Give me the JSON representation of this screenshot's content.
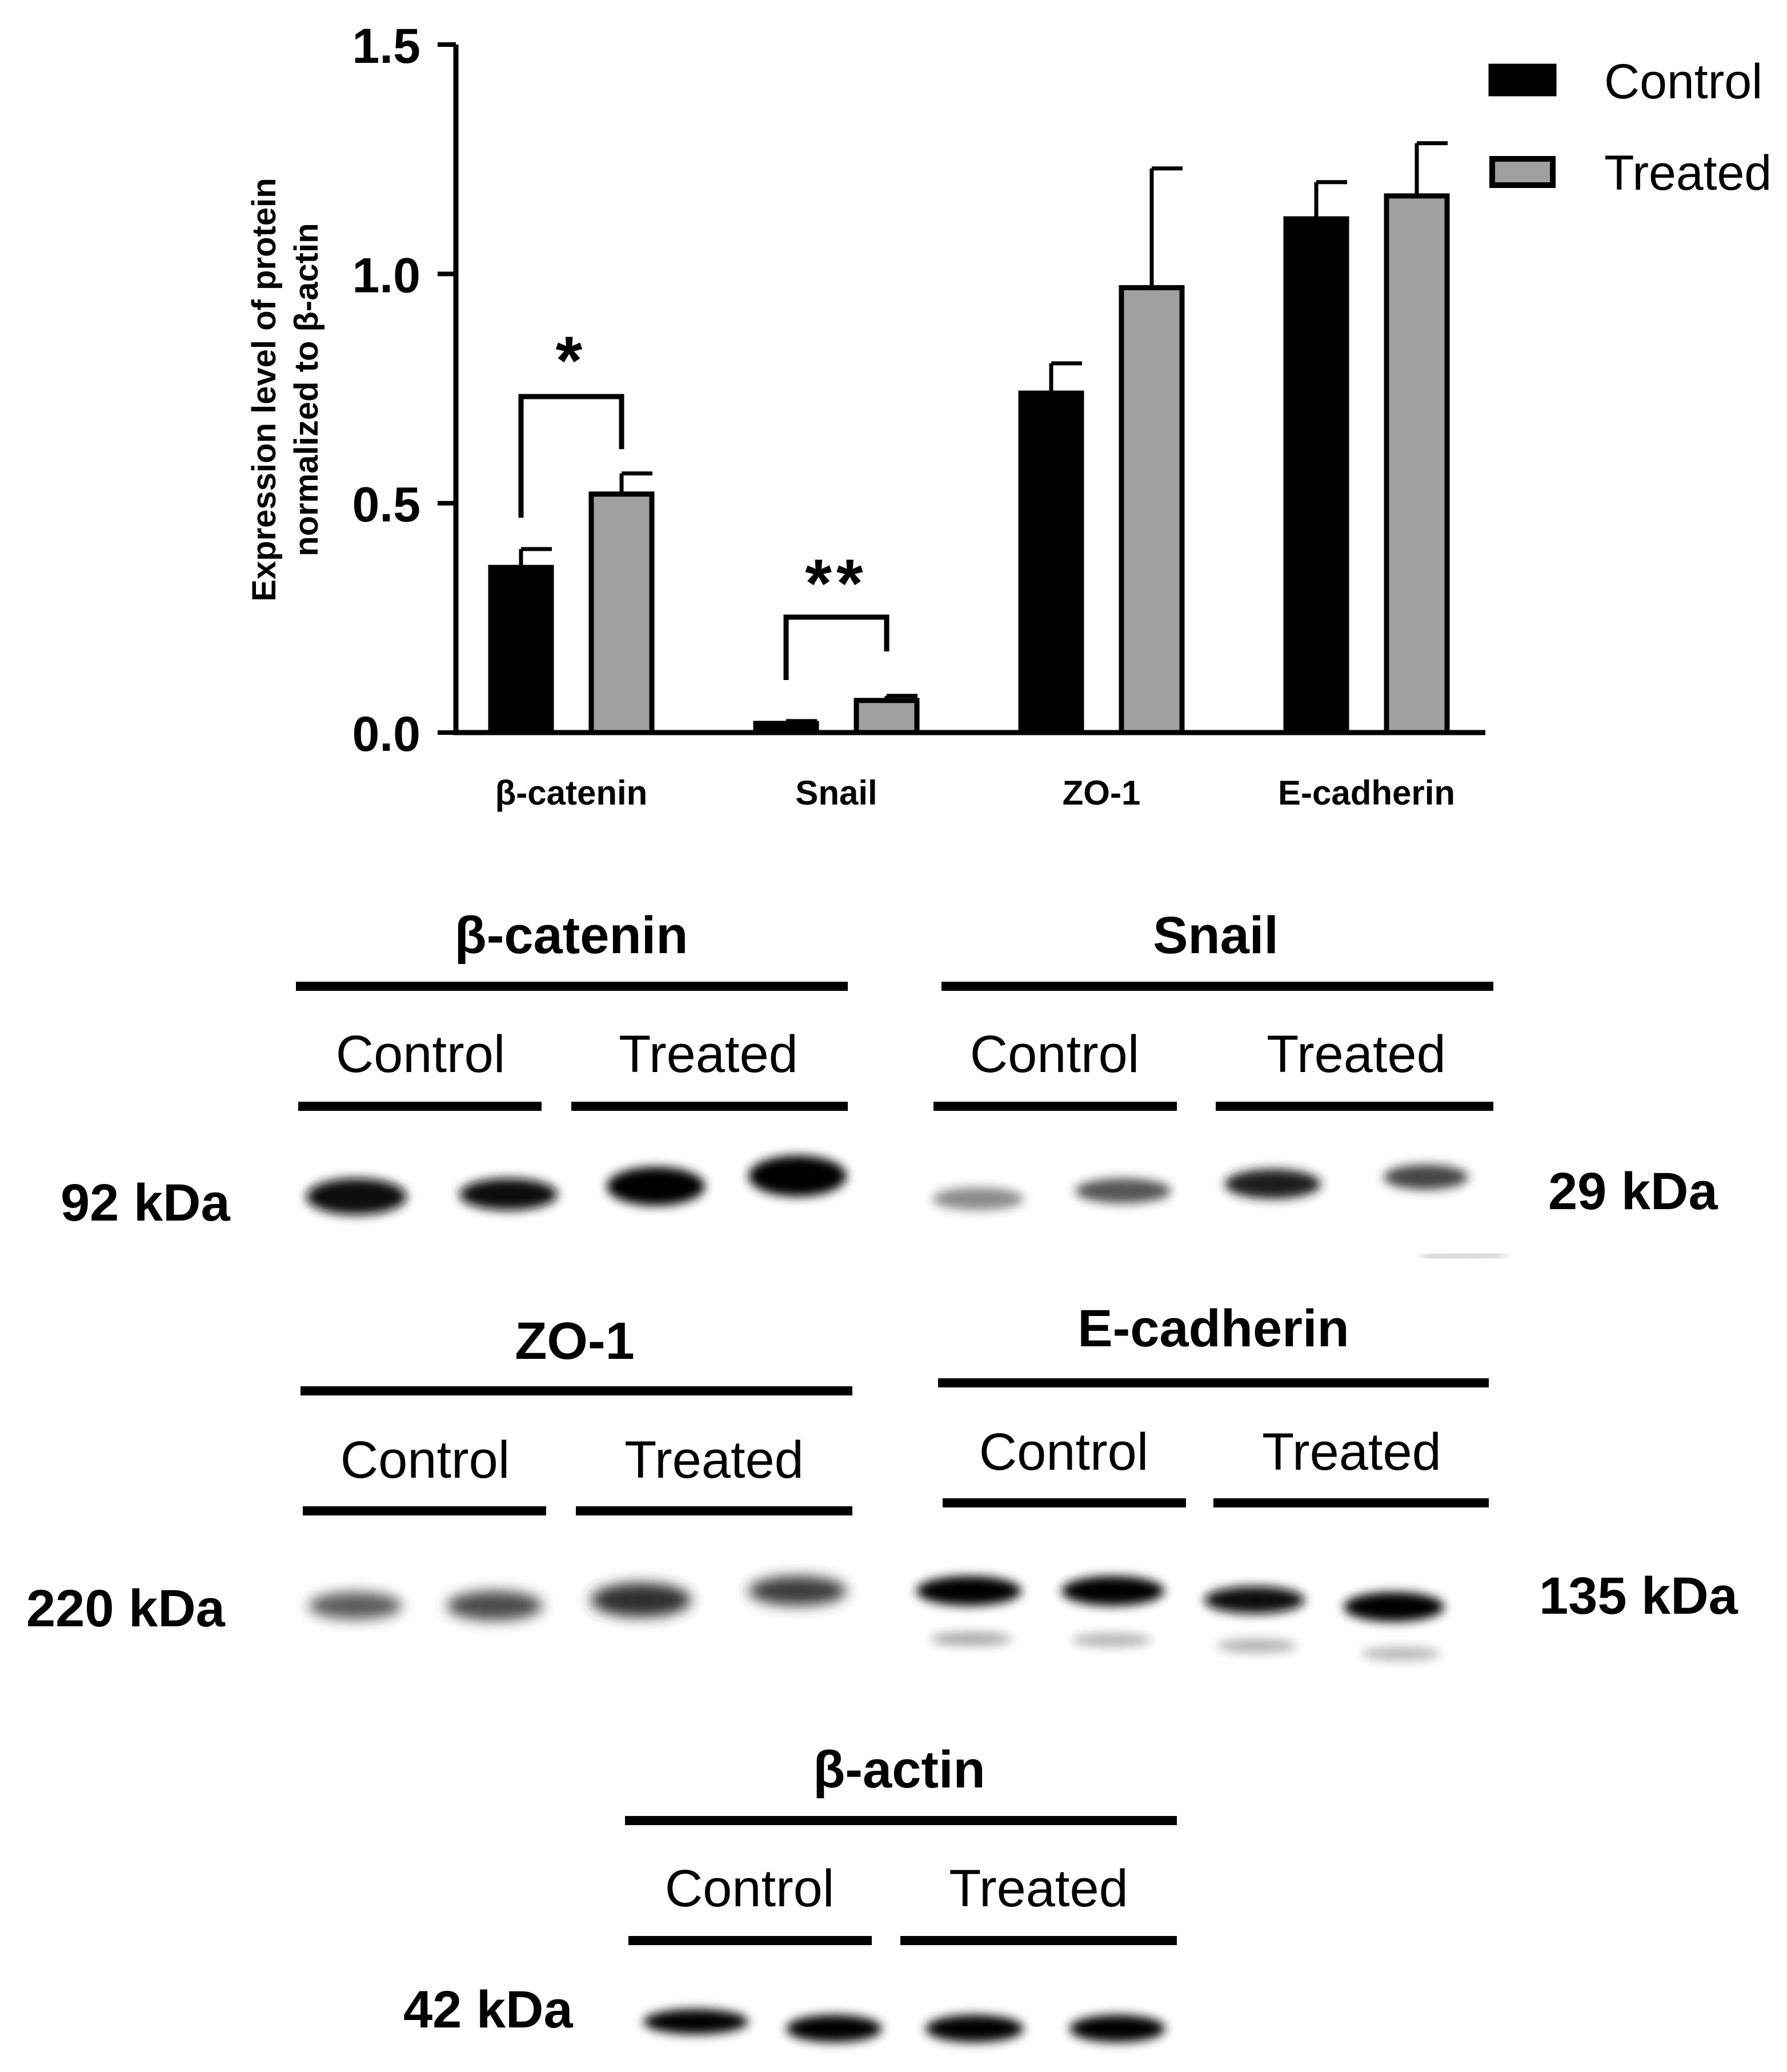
{
  "chart_data": {
    "type": "bar",
    "title": "",
    "xlabel": "",
    "ylabel_line1": "Expression level of protein",
    "ylabel_line2": "normalized to β-actin",
    "ylim": [
      0,
      1.5
    ],
    "yticks": [
      "0.0",
      "0.5",
      "1.0",
      "1.5"
    ],
    "ytick_values": [
      0,
      0.5,
      1.0,
      1.5
    ],
    "categories": [
      "β-catenin",
      "Snail",
      "ZO-1",
      "E-cadherin"
    ],
    "series": [
      {
        "name": "Control",
        "color": "#000000",
        "values": [
          0.36,
          0.02,
          0.74,
          1.12
        ],
        "errors": [
          0.04,
          0.005,
          0.065,
          0.08
        ]
      },
      {
        "name": "Treated",
        "color": "#a0a0a0",
        "values": [
          0.52,
          0.07,
          0.97,
          1.17
        ],
        "errors": [
          0.045,
          0.01,
          0.26,
          0.115
        ]
      }
    ],
    "significance": [
      {
        "category_index": 0,
        "label": "*"
      },
      {
        "category_index": 1,
        "label": "**"
      }
    ],
    "legend_position": "top-right",
    "grid": false
  },
  "blots": [
    {
      "name": "β-catenin",
      "groups": [
        "Control",
        "Treated"
      ],
      "kda": "92 kDa",
      "kda_side": "left"
    },
    {
      "name": "Snail",
      "groups": [
        "Control",
        "Treated"
      ],
      "kda": "29 kDa",
      "kda_side": "right"
    },
    {
      "name": "ZO-1",
      "groups": [
        "Control",
        "Treated"
      ],
      "kda": "220 kDa",
      "kda_side": "left"
    },
    {
      "name": "E-cadherin",
      "groups": [
        "Control",
        "Treated"
      ],
      "kda": "135 kDa",
      "kda_side": "right"
    },
    {
      "name": "β-actin",
      "groups": [
        "Control",
        "Treated"
      ],
      "kda": "42 kDa",
      "kda_side": "left"
    }
  ]
}
